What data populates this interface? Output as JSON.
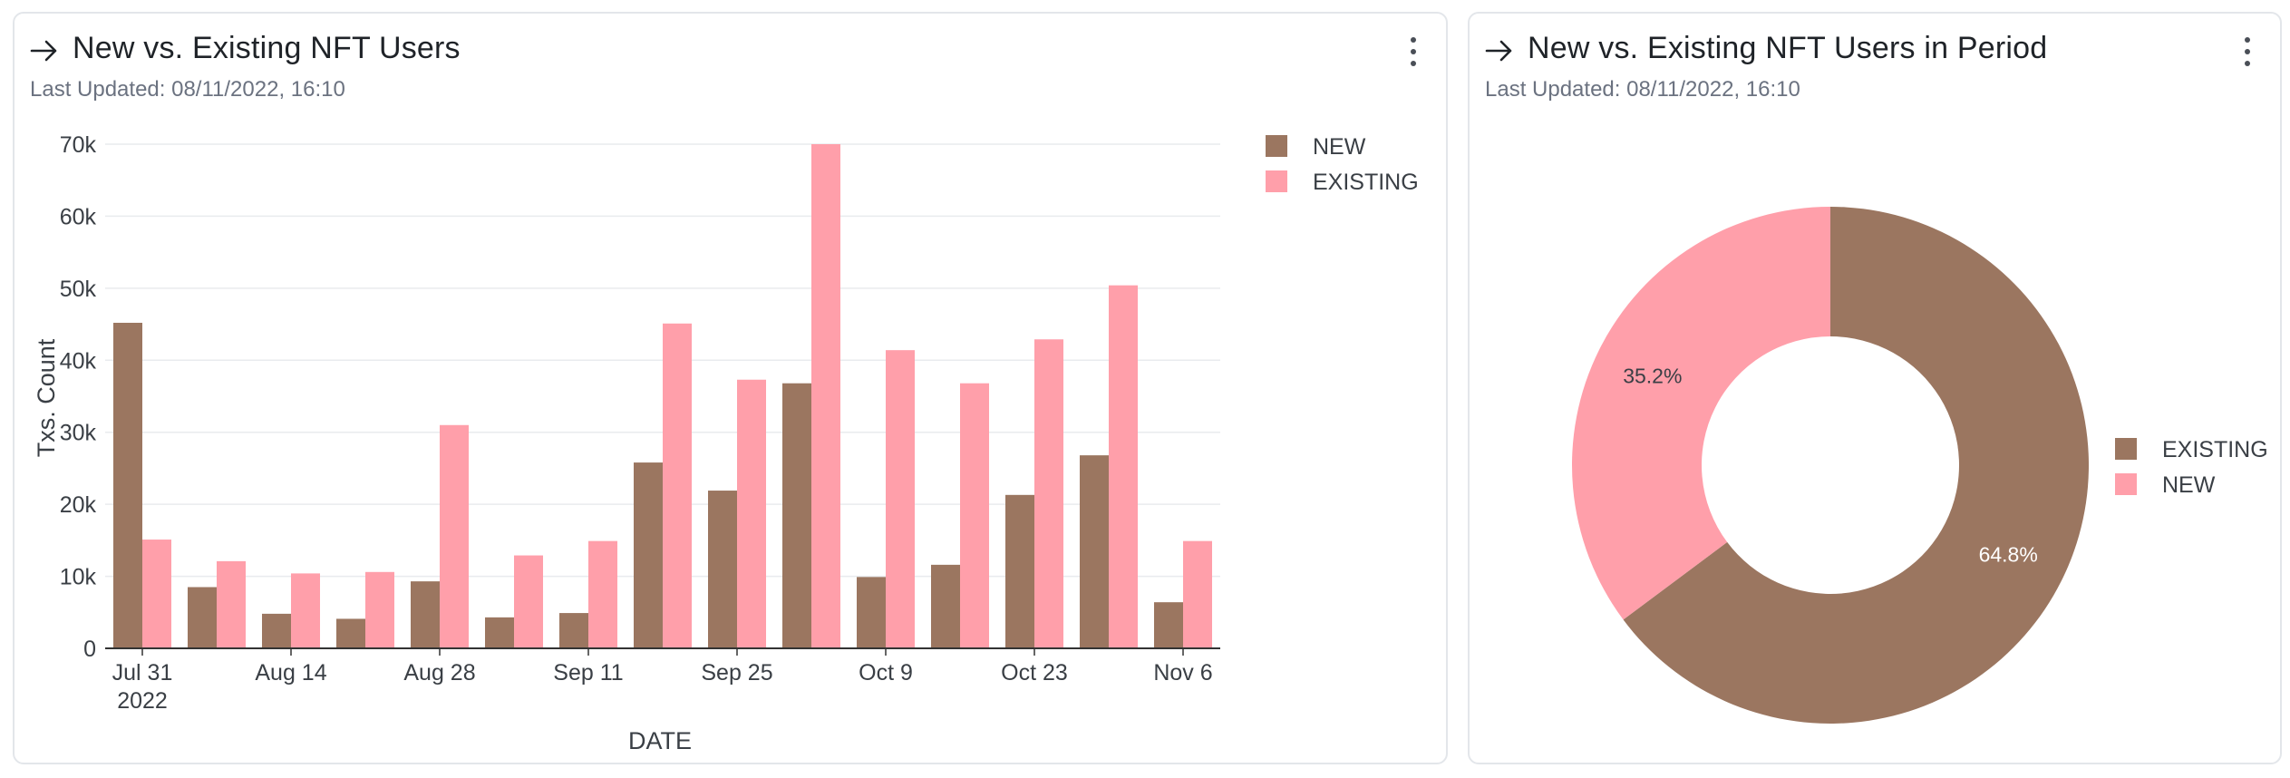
{
  "colors": {
    "new": "#9b7660",
    "existing": "#ff9faa",
    "grid": "#e9ebee",
    "axis": "#333333",
    "text": "#3a3f45"
  },
  "left_card": {
    "title": "New vs. Existing NFT Users",
    "subtitle": "Last Updated: 08/11/2022, 16:10",
    "icon": "arrow-right-icon",
    "menu_icon": "kebab-menu-icon"
  },
  "right_card": {
    "title": "New vs. Existing NFT Users in Period",
    "subtitle": "Last Updated: 08/11/2022, 16:10",
    "icon": "arrow-right-icon",
    "menu_icon": "kebab-menu-icon"
  },
  "chart_data": [
    {
      "type": "bar",
      "xlabel": "DATE",
      "ylabel": "Txs. Count",
      "ylim": [
        0,
        70000
      ],
      "yticks": [
        0,
        10000,
        20000,
        30000,
        40000,
        50000,
        60000,
        70000
      ],
      "ytick_labels": [
        "0",
        "10k",
        "20k",
        "30k",
        "40k",
        "50k",
        "60k",
        "70k"
      ],
      "x": [
        "2022-07-31",
        "2022-08-07",
        "2022-08-14",
        "2022-08-21",
        "2022-08-28",
        "2022-09-04",
        "2022-09-11",
        "2022-09-18",
        "2022-09-25",
        "2022-10-02",
        "2022-10-09",
        "2022-10-16",
        "2022-10-23",
        "2022-10-30",
        "2022-11-06"
      ],
      "xtick_labels": [
        {
          "x": "2022-07-31",
          "lines": [
            "Jul 31",
            "2022"
          ]
        },
        {
          "x": "2022-08-14",
          "lines": [
            "Aug 14"
          ]
        },
        {
          "x": "2022-08-28",
          "lines": [
            "Aug 28"
          ]
        },
        {
          "x": "2022-09-11",
          "lines": [
            "Sep 11"
          ]
        },
        {
          "x": "2022-09-25",
          "lines": [
            "Sep 25"
          ]
        },
        {
          "x": "2022-10-09",
          "lines": [
            "Oct 9"
          ]
        },
        {
          "x": "2022-10-23",
          "lines": [
            "Oct 23"
          ]
        },
        {
          "x": "2022-11-06",
          "lines": [
            "Nov 6"
          ]
        }
      ],
      "series": [
        {
          "name": "NEW",
          "values": [
            45200,
            8500,
            4800,
            4100,
            9300,
            4300,
            4900,
            25800,
            21900,
            36800,
            9900,
            11600,
            21300,
            26800,
            6400
          ]
        },
        {
          "name": "EXISTING",
          "values": [
            15100,
            12100,
            10400,
            10600,
            31000,
            12900,
            14900,
            45100,
            37300,
            70000,
            41400,
            36800,
            42900,
            50400,
            14900
          ]
        }
      ],
      "legend": "right",
      "grid": true
    },
    {
      "type": "pie",
      "donut": true,
      "slices": [
        {
          "label": "EXISTING",
          "value": 64.8,
          "display": "64.8%"
        },
        {
          "label": "NEW",
          "value": 35.2,
          "display": "35.2%"
        }
      ],
      "legend": "right"
    }
  ]
}
